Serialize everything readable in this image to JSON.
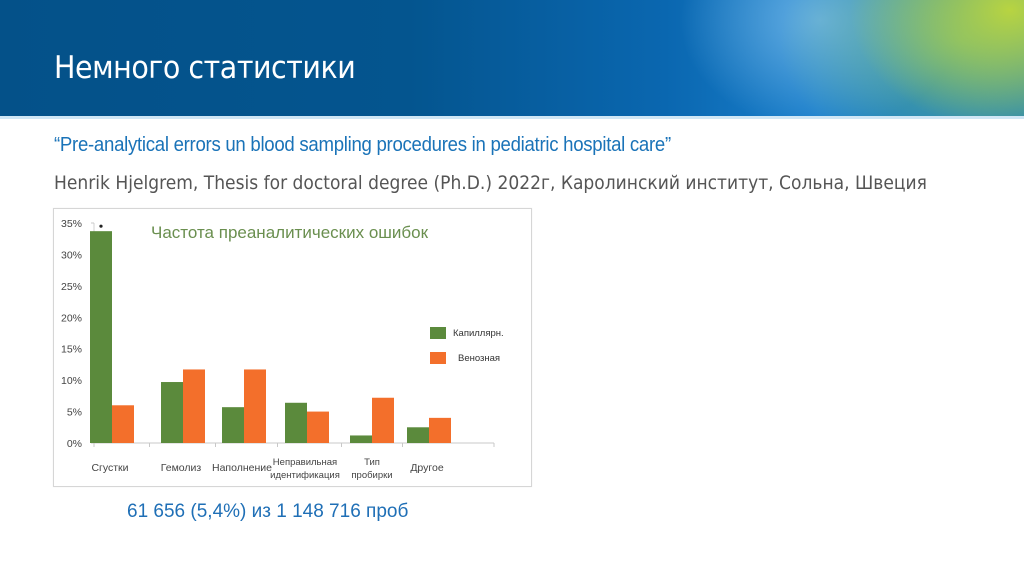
{
  "slide": {
    "title": "Немного статистики",
    "quote_title": "“Pre-analytical errors un blood sampling procedures in pediatric hospital care”",
    "citation": "Henrik Hjelgrem, Thesis for doctoral degree (Ph.D.) 2022г, Каролинский институт, Сольна, Швеция",
    "summary": "61 656 (5,4%) из 1 148 716 проб"
  },
  "colors": {
    "header_dark": "#045189",
    "quote_blue": "#1a73b8",
    "summary_blue": "#1f6fb6",
    "capillary_green": "#5b8a3c",
    "venous_orange": "#f36f2b",
    "chart_title_green": "#6a8f4f"
  },
  "chart_data": {
    "type": "bar",
    "title": "Частота  преаналитических ошибок",
    "xlabel": "",
    "ylabel": "",
    "ylim": [
      0,
      35
    ],
    "yticks": [
      "0%",
      "5%",
      "10%",
      "15%",
      "20%",
      "25%",
      "30%",
      "35%"
    ],
    "grid": false,
    "legend_position": "right",
    "categories": [
      "Сгустки",
      "Гемолиз",
      "Наполнение",
      "Неправильная идентификация",
      "Тип пробирки",
      "Другое"
    ],
    "category_lines": [
      [
        "Сгустки"
      ],
      [
        "Гемолиз"
      ],
      [
        "Наполнение"
      ],
      [
        "Неправильная",
        "идентификация"
      ],
      [
        "Тип",
        "пробирки"
      ],
      [
        "Другое"
      ]
    ],
    "series": [
      {
        "name": "Капиллярн.",
        "color": "#5b8a3c",
        "values": [
          33.7,
          9.7,
          5.7,
          6.4,
          1.2,
          2.5
        ]
      },
      {
        "name": "Венозная",
        "color": "#f36f2b",
        "values": [
          6.0,
          11.7,
          11.7,
          5.0,
          7.2,
          4.0
        ]
      }
    ],
    "annotations": [
      {
        "text": "*",
        "category": "Сгустки",
        "series": "Капиллярн."
      }
    ]
  }
}
